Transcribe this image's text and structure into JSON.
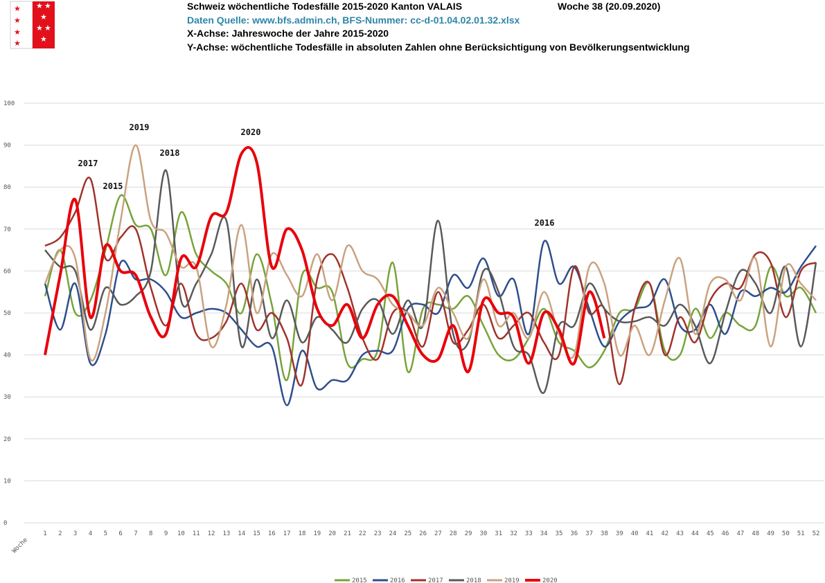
{
  "chart_data": {
    "type": "line",
    "title": "Schweiz wöchentliche Todesfälle 2015-2020 Kanton VALAIS",
    "subtitle": "Woche 38 (20.09.2020)",
    "source": "Daten Quelle: www.bfs.admin.ch,   BFS-Nummer: cc-d-01.04.02.01.32.xlsx",
    "x_note": "X-Achse:  Jahreswoche der Jahre 2015-2020",
    "y_note": "Y-Achse:  wöchentliche Todesfälle in absoluten Zahlen ohne Berücksichtigung von Bevölkerungsentwicklung",
    "x_label": "Woche",
    "categories": [
      "1",
      "2",
      "3",
      "4",
      "5",
      "6",
      "7",
      "8",
      "9",
      "10",
      "11",
      "12",
      "13",
      "14",
      "15",
      "16",
      "17",
      "18",
      "19",
      "20",
      "21",
      "22",
      "23",
      "24",
      "25",
      "26",
      "27",
      "28",
      "29",
      "30",
      "31",
      "32",
      "33",
      "34",
      "35",
      "36",
      "37",
      "38",
      "39",
      "40",
      "41",
      "42",
      "43",
      "44",
      "45",
      "46",
      "47",
      "48",
      "49",
      "50",
      "51",
      "52"
    ],
    "series": [
      {
        "name": "2015",
        "color": "#77a33a",
        "values": [
          54,
          65,
          50,
          53,
          65,
          78,
          71,
          70,
          59,
          74,
          64,
          60,
          57,
          50,
          64,
          52,
          34,
          59,
          56,
          55,
          38,
          39,
          41,
          62,
          36,
          51,
          52,
          51,
          54,
          47,
          40,
          39,
          44,
          51,
          43,
          41,
          37,
          41,
          50,
          51,
          57,
          41,
          40,
          51,
          44,
          50,
          47,
          47,
          61,
          54,
          56,
          50
        ]
      },
      {
        "name": "2016",
        "color": "#2e4e8c",
        "values": [
          57,
          46,
          57,
          38,
          45,
          62,
          58,
          58,
          55,
          49,
          50,
          51,
          50,
          46,
          42,
          42,
          28,
          41,
          32,
          34,
          34,
          40,
          41,
          41,
          51,
          52,
          50,
          59,
          56,
          63,
          54,
          58,
          45,
          67,
          57,
          61,
          51,
          42,
          48,
          51,
          52,
          58,
          47,
          46,
          52,
          45,
          55,
          54,
          56,
          55,
          61,
          66
        ]
      },
      {
        "name": "2017",
        "color": "#a0322a",
        "values": [
          66,
          68,
          74,
          82,
          63,
          68,
          70,
          56,
          47,
          57,
          45,
          44,
          48,
          57,
          46,
          50,
          44,
          33,
          58,
          64,
          56,
          44,
          39,
          50,
          50,
          42,
          55,
          43,
          46,
          52,
          44,
          47,
          50,
          43,
          40,
          61,
          50,
          51,
          33,
          51,
          57,
          40,
          49,
          43,
          53,
          57,
          56,
          64,
          62,
          49,
          60,
          62
        ]
      },
      {
        "name": "2018",
        "color": "#595959",
        "values": [
          65,
          61,
          60,
          46,
          56,
          52,
          54,
          60,
          84,
          53,
          57,
          64,
          72,
          42,
          58,
          44,
          53,
          43,
          49,
          46,
          43,
          51,
          53,
          45,
          53,
          47,
          72,
          45,
          43,
          60,
          55,
          42,
          40,
          31,
          47,
          47,
          57,
          51,
          48,
          48,
          49,
          47,
          52,
          47,
          38,
          50,
          60,
          57,
          50,
          61,
          42,
          62
        ]
      },
      {
        "name": "2019",
        "color": "#c9a27f",
        "values": [
          57,
          65,
          63,
          39,
          50,
          72,
          90,
          72,
          69,
          61,
          61,
          42,
          52,
          71,
          50,
          64,
          59,
          54,
          64,
          53,
          66,
          60,
          58,
          52,
          50,
          47,
          56,
          50,
          44,
          58,
          47,
          50,
          44,
          55,
          45,
          40,
          61,
          57,
          40,
          47,
          40,
          53,
          63,
          45,
          57,
          58,
          53,
          63,
          42,
          61,
          57,
          53
        ]
      },
      {
        "name": "2020",
        "color": "#e8000b",
        "values": [
          40,
          59,
          77,
          49,
          66,
          60,
          59,
          49,
          45,
          63,
          61,
          73,
          74,
          88,
          86,
          61,
          70,
          65,
          51,
          47,
          52,
          44,
          52,
          54,
          47,
          40,
          39,
          47,
          36,
          53,
          50,
          49,
          38,
          50,
          46,
          38,
          55,
          44,
          null,
          null,
          null,
          null,
          null,
          null,
          null,
          null,
          null,
          null,
          null,
          null,
          null,
          null
        ]
      }
    ],
    "annotations": [
      "2017",
      "2015",
      "2019",
      "2018",
      "2020",
      "2016"
    ],
    "ylim": [
      0,
      100
    ],
    "yticks": [
      0,
      10,
      20,
      30,
      40,
      50,
      60,
      70,
      80,
      90,
      100
    ],
    "grid": true,
    "legend": "bottom"
  }
}
